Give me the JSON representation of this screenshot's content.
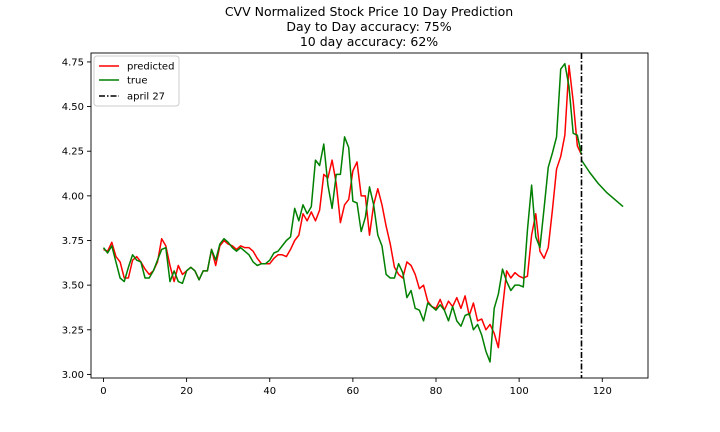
{
  "chart_data": {
    "type": "line",
    "title_lines": [
      "CVV Normalized Stock Price 10 Day Prediction",
      "Day to Day accuracy: 75%",
      "10 day accuracy: 62%"
    ],
    "xlabel": "",
    "ylabel": "",
    "xlim": [
      -3,
      131
    ],
    "ylim": [
      2.98,
      4.8
    ],
    "x_ticks": [
      0,
      20,
      40,
      60,
      80,
      100,
      120
    ],
    "x_tick_labels": [
      "0",
      "20",
      "40",
      "60",
      "80",
      "100",
      "120"
    ],
    "y_ticks": [
      3.0,
      3.25,
      3.5,
      3.75,
      4.0,
      4.25,
      4.5,
      4.75
    ],
    "y_tick_labels": [
      "3.00",
      "3.25",
      "3.50",
      "3.75",
      "4.00",
      "4.25",
      "4.50",
      "4.75"
    ],
    "grid": false,
    "legend_position": "top-left",
    "series": [
      {
        "name": "predicted",
        "color": "#ff0000",
        "x_start": 0,
        "values": [
          3.7,
          3.69,
          3.74,
          3.66,
          3.63,
          3.54,
          3.54,
          3.64,
          3.66,
          3.63,
          3.59,
          3.56,
          3.58,
          3.63,
          3.76,
          3.72,
          3.61,
          3.52,
          3.61,
          3.56,
          3.58,
          3.6,
          3.58,
          3.53,
          3.58,
          3.58,
          3.7,
          3.61,
          3.72,
          3.75,
          3.73,
          3.72,
          3.7,
          3.72,
          3.71,
          3.71,
          3.69,
          3.65,
          3.62,
          3.62,
          3.62,
          3.65,
          3.67,
          3.67,
          3.66,
          3.7,
          3.75,
          3.78,
          3.9,
          3.86,
          3.91,
          3.86,
          3.92,
          4.12,
          4.1,
          4.2,
          4.07,
          3.85,
          3.95,
          3.98,
          4.14,
          4.19,
          4.0,
          4.0,
          3.78,
          3.95,
          4.04,
          3.95,
          3.83,
          3.73,
          3.6,
          3.56,
          3.54,
          3.63,
          3.61,
          3.56,
          3.48,
          3.5,
          3.41,
          3.38,
          3.37,
          3.42,
          3.36,
          3.41,
          3.38,
          3.43,
          3.37,
          3.44,
          3.33,
          3.4,
          3.3,
          3.31,
          3.25,
          3.28,
          3.23,
          3.15,
          3.37,
          3.58,
          3.54,
          3.57,
          3.55,
          3.54,
          3.55,
          3.78,
          3.9,
          3.69,
          3.65,
          3.71,
          3.92,
          4.15,
          4.22,
          4.34,
          4.73,
          4.53,
          4.28,
          4.23
        ]
      },
      {
        "name": "true",
        "color": "#008000",
        "x_start": 0,
        "values": [
          3.71,
          3.68,
          3.72,
          3.63,
          3.54,
          3.52,
          3.6,
          3.67,
          3.64,
          3.63,
          3.54,
          3.54,
          3.58,
          3.64,
          3.7,
          3.71,
          3.52,
          3.58,
          3.52,
          3.51,
          3.58,
          3.6,
          3.58,
          3.53,
          3.58,
          3.58,
          3.7,
          3.64,
          3.73,
          3.76,
          3.74,
          3.71,
          3.69,
          3.71,
          3.69,
          3.67,
          3.63,
          3.61,
          3.62,
          3.62,
          3.64,
          3.68,
          3.69,
          3.72,
          3.75,
          3.77,
          3.93,
          3.86,
          3.95,
          3.9,
          3.94,
          4.2,
          4.17,
          4.29,
          4.06,
          3.93,
          4.12,
          4.12,
          4.33,
          4.27,
          3.97,
          3.96,
          3.8,
          3.88,
          4.05,
          3.95,
          3.78,
          3.72,
          3.56,
          3.54,
          3.54,
          3.62,
          3.57,
          3.43,
          3.47,
          3.37,
          3.36,
          3.3,
          3.4,
          3.38,
          3.36,
          3.39,
          3.36,
          3.3,
          3.38,
          3.3,
          3.27,
          3.33,
          3.34,
          3.25,
          3.28,
          3.22,
          3.13,
          3.07,
          3.37,
          3.45,
          3.59,
          3.52,
          3.47,
          3.5,
          3.5,
          3.49,
          3.81,
          4.06,
          3.77,
          3.71,
          3.93,
          4.16,
          4.24,
          4.33,
          4.71,
          4.74,
          4.61,
          4.35,
          4.34,
          4.23
        ]
      },
      {
        "name": "",
        "color": "#008000",
        "x": [
          115,
          117,
          119,
          121,
          123,
          125
        ],
        "values": [
          4.2,
          4.13,
          4.07,
          4.02,
          3.98,
          3.94
        ]
      },
      {
        "name": "april 27",
        "color": "#000000",
        "type": "vline",
        "x": 115
      }
    ]
  }
}
